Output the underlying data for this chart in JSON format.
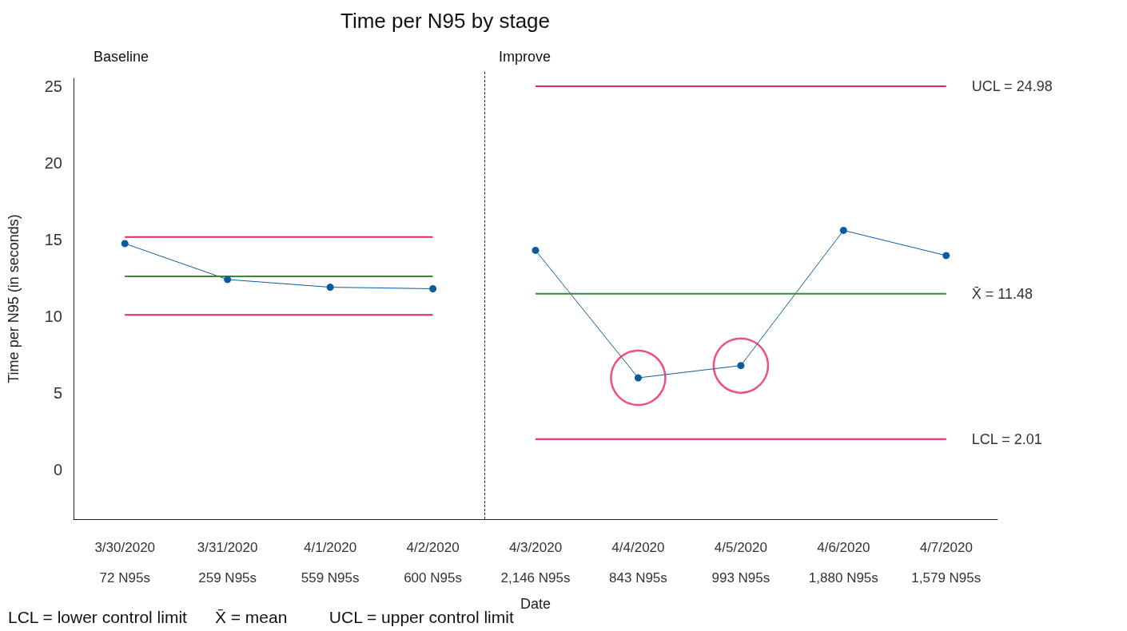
{
  "chart_data": {
    "type": "line",
    "title": "Time per N95 by stage",
    "xlabel": "Date",
    "ylabel": "Time per N95 (in seconds)",
    "categories": [
      "3/30/2020\n72 N95s",
      "3/31/2020\n259 N95s",
      "4/1/2020\n559 N95s",
      "4/2/2020\n600 N95s",
      "4/3/2020\n2,146 N95s",
      "4/4/2020\n843 N95s",
      "4/5/2020\n993 N95s",
      "4/6/2020\n1,880 N95s",
      "4/7/2020\n1,579 N95s"
    ],
    "series": [
      {
        "color": "#0b5c9e",
        "marker": "circle",
        "values": [
          14.74,
          12.4,
          11.9,
          11.8,
          null,
          null,
          null,
          null,
          null
        ]
      },
      {
        "color": "#0b5c9e",
        "marker": "circle",
        "values": [
          null,
          null,
          null,
          null,
          14.3,
          6.0,
          6.8,
          15.6,
          13.96
        ]
      },
      {
        "type": "scatter",
        "color": "#e8245a",
        "marker": "circle",
        "values": [
          null,
          null,
          null,
          null,
          null,
          6.0,
          6.8,
          null,
          null
        ]
      },
      {
        "color": "#e8245a",
        "marker": "none",
        "values": [
          15.16,
          15.16,
          15.16,
          15.16,
          null,
          null,
          null,
          null,
          null
        ]
      },
      {
        "color": "#3a8a2e",
        "marker": "none",
        "values": [
          12.6,
          12.6,
          12.6,
          12.6,
          null,
          null,
          null,
          null,
          null
        ]
      },
      {
        "color": "#e8245a",
        "marker": "none",
        "values": [
          10.1,
          10.1,
          10.1,
          10.1,
          null,
          null,
          null,
          null,
          null
        ]
      },
      {
        "name": "UCL = 24.98",
        "color": "#e8245a",
        "marker": "none",
        "values": [
          null,
          null,
          null,
          null,
          24.98,
          24.98,
          24.98,
          24.98,
          24.98
        ]
      },
      {
        "name": "X̄ = 11.48",
        "color": "#3a8a2e",
        "marker": "none",
        "values": [
          null,
          null,
          null,
          null,
          11.48,
          11.48,
          11.48,
          11.48,
          11.48
        ]
      },
      {
        "name": "LCL = 2.01",
        "color": "#e8245a",
        "marker": "none",
        "values": [
          null,
          null,
          null,
          null,
          2.01,
          2.01,
          2.01,
          2.01,
          2.01
        ]
      }
    ],
    "annotations": [
      "Baseline",
      "Improve",
      "LCL = lower control limit      X̄ = mean         UCL = upper control limit"
    ],
    "ylim": [
      -3.2,
      25.5
    ],
    "yticks": [
      0,
      5,
      10,
      15,
      20,
      25
    ],
    "grid": false,
    "legend": false
  }
}
